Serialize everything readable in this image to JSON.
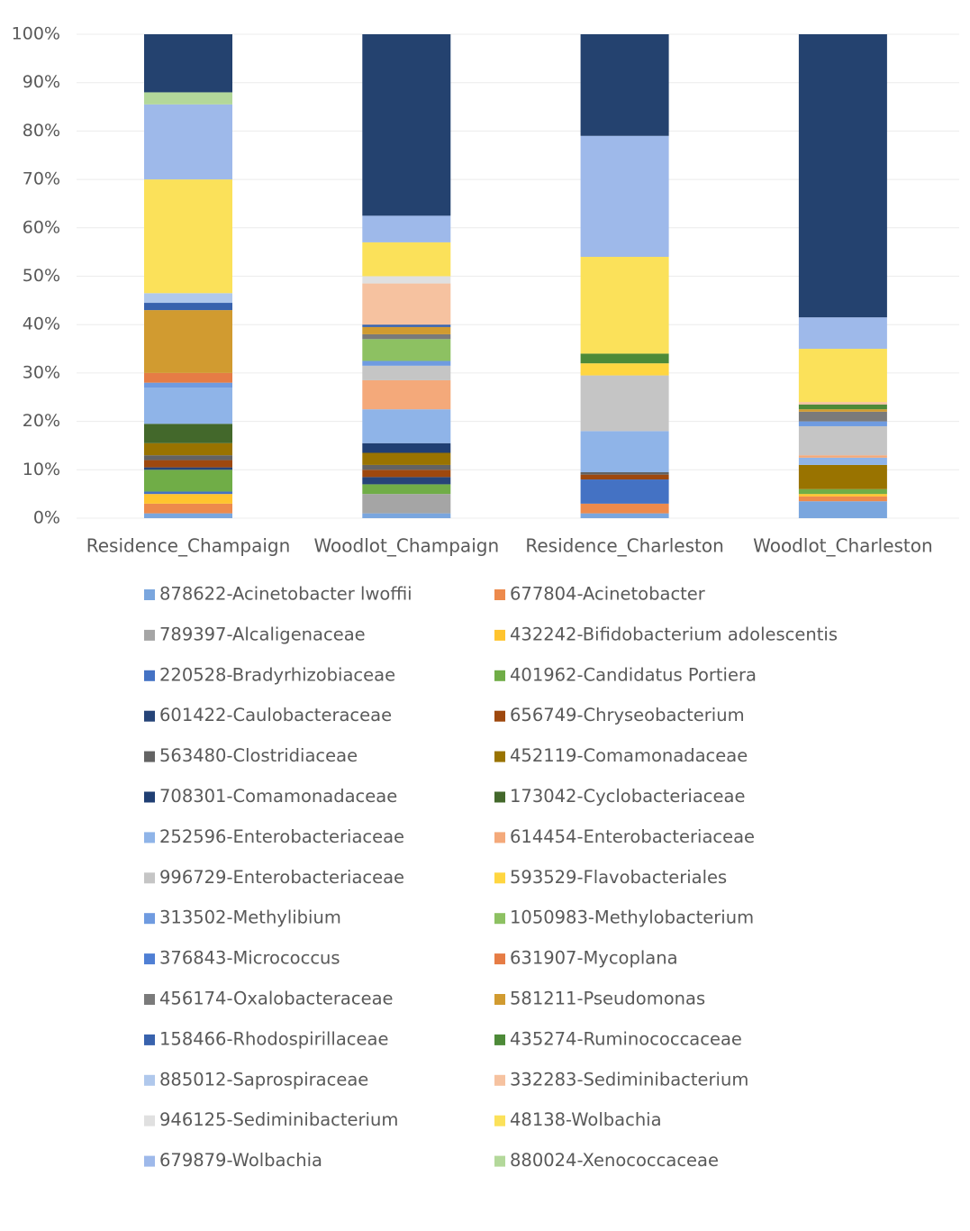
{
  "chart_data": {
    "type": "stacked_bar",
    "categories": [
      "Residence_Champaign",
      "Woodlot_Champaign",
      "Residence_Charleston",
      "Woodlot_Charleston"
    ],
    "ylim": [
      0,
      100
    ],
    "yticks": [
      {
        "value": 0,
        "label": "0%"
      },
      {
        "value": 10,
        "label": "10%"
      },
      {
        "value": 20,
        "label": "20%"
      },
      {
        "value": 30,
        "label": "30%"
      },
      {
        "value": 40,
        "label": "40%"
      },
      {
        "value": 50,
        "label": "50%"
      },
      {
        "value": 60,
        "label": "60%"
      },
      {
        "value": 70,
        "label": "70%"
      },
      {
        "value": 80,
        "label": "80%"
      },
      {
        "value": 90,
        "label": "90%"
      },
      {
        "value": 100,
        "label": "100%"
      }
    ],
    "grid": true,
    "legend": "bottom",
    "series": [
      {
        "name": "878622-Acinetobacter lwoffii",
        "color": "#7aa6de",
        "values": [
          1,
          1,
          1,
          3.5
        ]
      },
      {
        "name": "677804-Acinetobacter",
        "color": "#ed8a4c",
        "values": [
          2,
          0,
          2,
          1
        ]
      },
      {
        "name": "789397-Alcaligenaceae",
        "color": "#a5a5a5",
        "values": [
          0,
          4,
          0,
          0
        ]
      },
      {
        "name": "432242-Bifidobacterium adolescentis",
        "color": "#ffc42e",
        "values": [
          2,
          0,
          0,
          0.5
        ]
      },
      {
        "name": "220528-Bradyrhizobiaceae",
        "color": "#4472c4",
        "values": [
          0.5,
          0,
          5,
          0
        ]
      },
      {
        "name": "401962-Candidatus Portiera",
        "color": "#70ad47",
        "values": [
          4.5,
          2,
          0,
          1
        ]
      },
      {
        "name": "601422-Caulobacteraceae",
        "color": "#264478",
        "values": [
          0.5,
          1.5,
          0,
          0
        ]
      },
      {
        "name": "656749-Chryseobacterium",
        "color": "#9e480e",
        "values": [
          1.5,
          1.5,
          1,
          0
        ]
      },
      {
        "name": "563480-Clostridiaceae",
        "color": "#636363",
        "values": [
          1,
          1,
          0.5,
          0
        ]
      },
      {
        "name": "452119-Comamonadaceae",
        "color": "#997300",
        "values": [
          2.5,
          2.5,
          0,
          5
        ]
      },
      {
        "name": "708301-Comamonadaceae",
        "color": "#203f73",
        "values": [
          0,
          2,
          0,
          0
        ]
      },
      {
        "name": "173042-Cyclobacteriaceae",
        "color": "#43682b",
        "values": [
          4,
          0,
          0,
          0
        ]
      },
      {
        "name": "252596-Enterobacteriaceae",
        "color": "#8fb4e8",
        "values": [
          7.5,
          7,
          8.5,
          1.5
        ]
      },
      {
        "name": "614454-Enterobacteriaceae",
        "color": "#f4a97a",
        "values": [
          0,
          6,
          0,
          0.5
        ]
      },
      {
        "name": "996729-Enterobacteriaceae",
        "color": "#c5c5c5",
        "values": [
          0,
          3,
          11.5,
          6
        ]
      },
      {
        "name": "593529-Flavobacteriales",
        "color": "#ffd640",
        "values": [
          0,
          0,
          2.5,
          0
        ]
      },
      {
        "name": "313502-Methylibium",
        "color": "#6f9be0",
        "values": [
          1,
          1,
          0,
          1
        ]
      },
      {
        "name": "1050983-Methylobacterium",
        "color": "#8dc162",
        "values": [
          0,
          4.5,
          0,
          0
        ]
      },
      {
        "name": "376843-Micrococcus",
        "color": "#4f7fd4",
        "values": [
          0,
          0,
          0,
          0
        ]
      },
      {
        "name": "631907-Mycoplana",
        "color": "#e67c45",
        "values": [
          2,
          0,
          0,
          0
        ]
      },
      {
        "name": "456174-Oxalobacteraceae",
        "color": "#7a7a7a",
        "values": [
          0,
          1,
          0,
          2
        ]
      },
      {
        "name": "581211-Pseudomonas",
        "color": "#d19b30",
        "values": [
          13,
          1.5,
          0,
          0.5
        ]
      },
      {
        "name": "158466-Rhodospirillaceae",
        "color": "#3862ad",
        "values": [
          1.5,
          0.5,
          0,
          0
        ]
      },
      {
        "name": "435274-Ruminococcaceae",
        "color": "#4d8a38",
        "values": [
          0,
          0,
          2,
          1
        ]
      },
      {
        "name": "885012-Saprospiraceae",
        "color": "#b0c8ec",
        "values": [
          2,
          0,
          0,
          0
        ]
      },
      {
        "name": "332283-Sediminibacterium",
        "color": "#f6c2a0",
        "values": [
          0,
          8.5,
          0,
          0.5
        ]
      },
      {
        "name": "946125-Sediminibacterium",
        "color": "#e0e0e0",
        "values": [
          0,
          1.5,
          0,
          0
        ]
      },
      {
        "name": "48138-Wolbachia",
        "color": "#fbe15a",
        "values": [
          23.5,
          7,
          20,
          11
        ]
      },
      {
        "name": "679879-Wolbachia",
        "color": "#9eb9ea",
        "values": [
          15.5,
          5.5,
          25,
          6.5
        ]
      },
      {
        "name": "880024-Xenococcaceae",
        "color": "#b3d89a",
        "values": [
          2.5,
          0,
          0,
          0
        ]
      },
      {
        "color": "#24426f",
        "values": [
          12,
          37.5,
          21,
          58.5
        ]
      }
    ]
  }
}
